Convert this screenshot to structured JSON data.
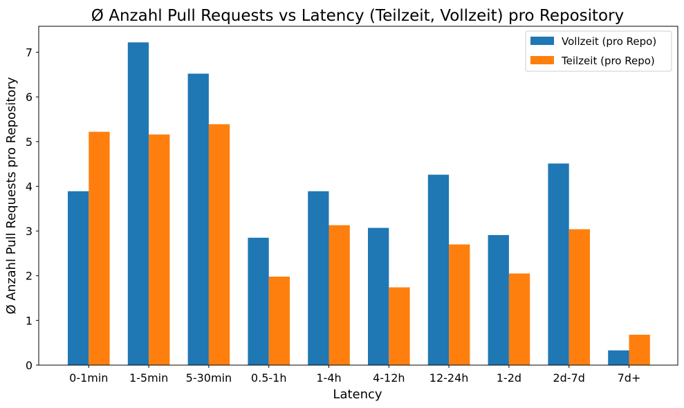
{
  "chart_data": {
    "type": "bar",
    "title": "Ø Anzahl Pull Requests vs Latency (Teilzeit, Vollzeit) pro Repository",
    "xlabel": "Latency",
    "ylabel": "Ø Anzahl Pull Requests pro Repository",
    "categories": [
      "0-1min",
      "1-5min",
      "5-30min",
      "0.5-1h",
      "1-4h",
      "4-12h",
      "12-24h",
      "1-2d",
      "2d-7d",
      "7d+"
    ],
    "series": [
      {
        "name": "Vollzeit (pro Repo)",
        "color": "#1f77b4",
        "values": [
          3.89,
          7.22,
          6.52,
          2.85,
          3.89,
          3.07,
          4.26,
          2.91,
          4.51,
          0.33
        ]
      },
      {
        "name": "Teilzeit (pro Repo)",
        "color": "#ff7f0e",
        "values": [
          5.22,
          5.16,
          5.39,
          1.98,
          3.13,
          1.74,
          2.7,
          2.05,
          3.04,
          0.68
        ]
      }
    ],
    "ylim": [
      0,
      7.58
    ],
    "yticks": [
      0,
      1,
      2,
      3,
      4,
      5,
      6,
      7
    ],
    "grid": false,
    "legend_position": "top-right"
  }
}
